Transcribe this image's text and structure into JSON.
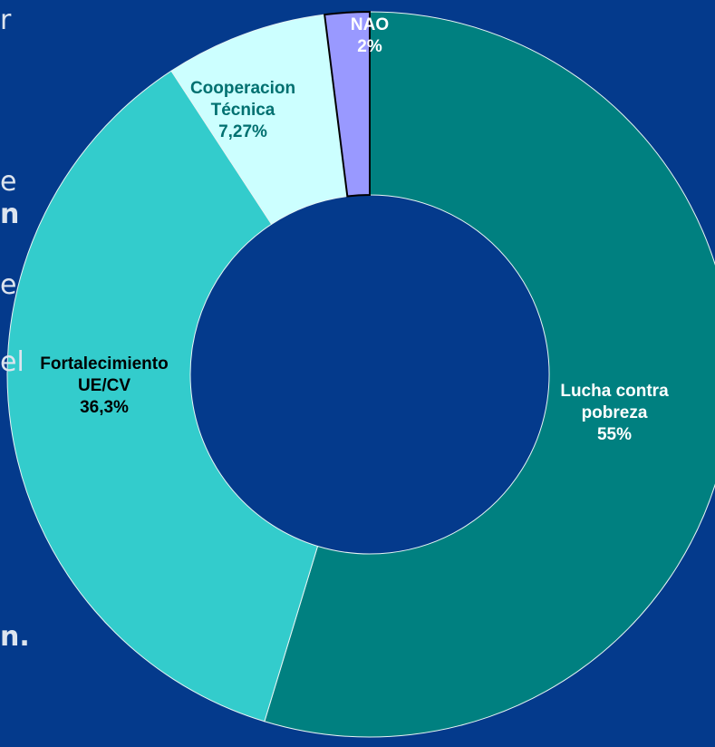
{
  "background_text": [
    "r",
    "e",
    "n",
    "e",
    "el",
    "n."
  ],
  "chart_data": {
    "type": "donut",
    "categories": [
      "Lucha contra pobreza",
      "Fortalecimiento UE/CV",
      "Cooperacion Técnica",
      "NAO"
    ],
    "values": [
      55,
      36.3,
      7.27,
      2
    ],
    "value_labels": [
      "55%",
      "36,3%",
      "7,27%",
      "2%"
    ],
    "colors": [
      "#008080",
      "#33cccc",
      "#ccffff",
      "#9999ff"
    ]
  }
}
